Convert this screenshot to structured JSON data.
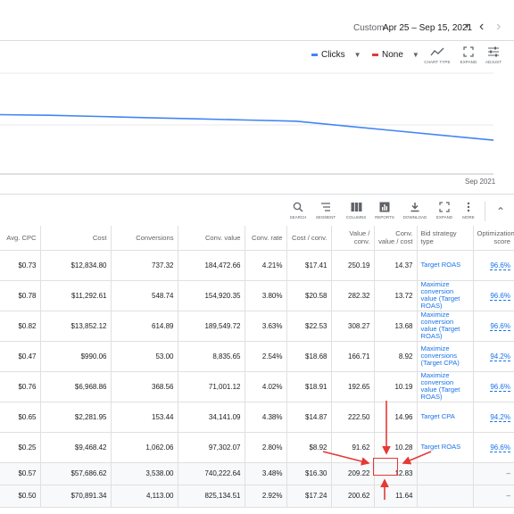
{
  "date_range": {
    "label": "Custom",
    "value": "Apr 25 – Sep 15, 2021"
  },
  "chart_controls": {
    "metric1": {
      "label": "Clicks",
      "color": "#4285f4"
    },
    "metric2": {
      "label": "None",
      "color": "#e53935"
    },
    "chart_type_label": "CHART TYPE",
    "expand_label": "EXPAND",
    "adjust_label": "ADJUST"
  },
  "chart_data": {
    "type": "line",
    "series": [
      {
        "name": "Clicks",
        "values": [
          100,
          99,
          97,
          95,
          93,
          91,
          89,
          81,
          73,
          65,
          57
        ]
      }
    ],
    "x": [
      0,
      1,
      2,
      3,
      4,
      5,
      6,
      7,
      8,
      9,
      10
    ],
    "x_tick_label": "Sep 2021",
    "grid": true,
    "color": "#4285f4"
  },
  "table_toolbar": {
    "search": "SEARCH",
    "segment": "SEGMENT",
    "columns": "COLUMNS",
    "reports": "REPORTS",
    "download": "DOWNLOAD",
    "expand": "EXPAND",
    "more": "MORE"
  },
  "table": {
    "headers": [
      "Avg. CPC",
      "Cost",
      "Conversions",
      "Conv. value",
      "Conv. rate",
      "Cost / conv.",
      "Value / conv.",
      "Conv. value / cost",
      "Bid strategy type",
      "Optimization score"
    ],
    "rows": [
      [
        "$0.73",
        "$12,834.80",
        "737.32",
        "184,472.66",
        "4.21%",
        "$17.41",
        "250.19",
        "14.37",
        "Target ROAS",
        "96.6%"
      ],
      [
        "$0.78",
        "$11,292.61",
        "548.74",
        "154,920.35",
        "3.80%",
        "$20.58",
        "282.32",
        "13.72",
        "Maximize conversion value (Target ROAS)",
        "96.6%"
      ],
      [
        "$0.82",
        "$13,852.12",
        "614.89",
        "189,549.72",
        "3.63%",
        "$22.53",
        "308.27",
        "13.68",
        "Maximize conversion value (Target ROAS)",
        "96.6%"
      ],
      [
        "$0.47",
        "$990.06",
        "53.00",
        "8,835.65",
        "2.54%",
        "$18.68",
        "166.71",
        "8.92",
        "Maximize conversions (Target CPA)",
        "94.2%"
      ],
      [
        "$0.76",
        "$6,968.86",
        "368.56",
        "71,001.12",
        "4.02%",
        "$18.91",
        "192.65",
        "10.19",
        "Maximize conversion value (Target ROAS)",
        "96.6%"
      ],
      [
        "$0.65",
        "$2,281.95",
        "153.44",
        "34,141.09",
        "4.38%",
        "$14.87",
        "222.50",
        "14.96",
        "Target CPA",
        "94.2%"
      ],
      [
        "$0.25",
        "$9,468.42",
        "1,062.06",
        "97,302.07",
        "2.80%",
        "$8.92",
        "91.62",
        "10.28",
        "Target ROAS",
        "96.6%"
      ]
    ],
    "totals": [
      [
        "$0.57",
        "$57,686.62",
        "3,538.00",
        "740,222.64",
        "3.48%",
        "$16.30",
        "209.22",
        "12.83",
        "",
        "–"
      ],
      [
        "$0.50",
        "$70,891.34",
        "4,113.00",
        "825,134.51",
        "2.92%",
        "$17.24",
        "200.62",
        "11.64",
        "",
        "–"
      ]
    ]
  },
  "annotation": {
    "highlight_color": "#e53935"
  }
}
